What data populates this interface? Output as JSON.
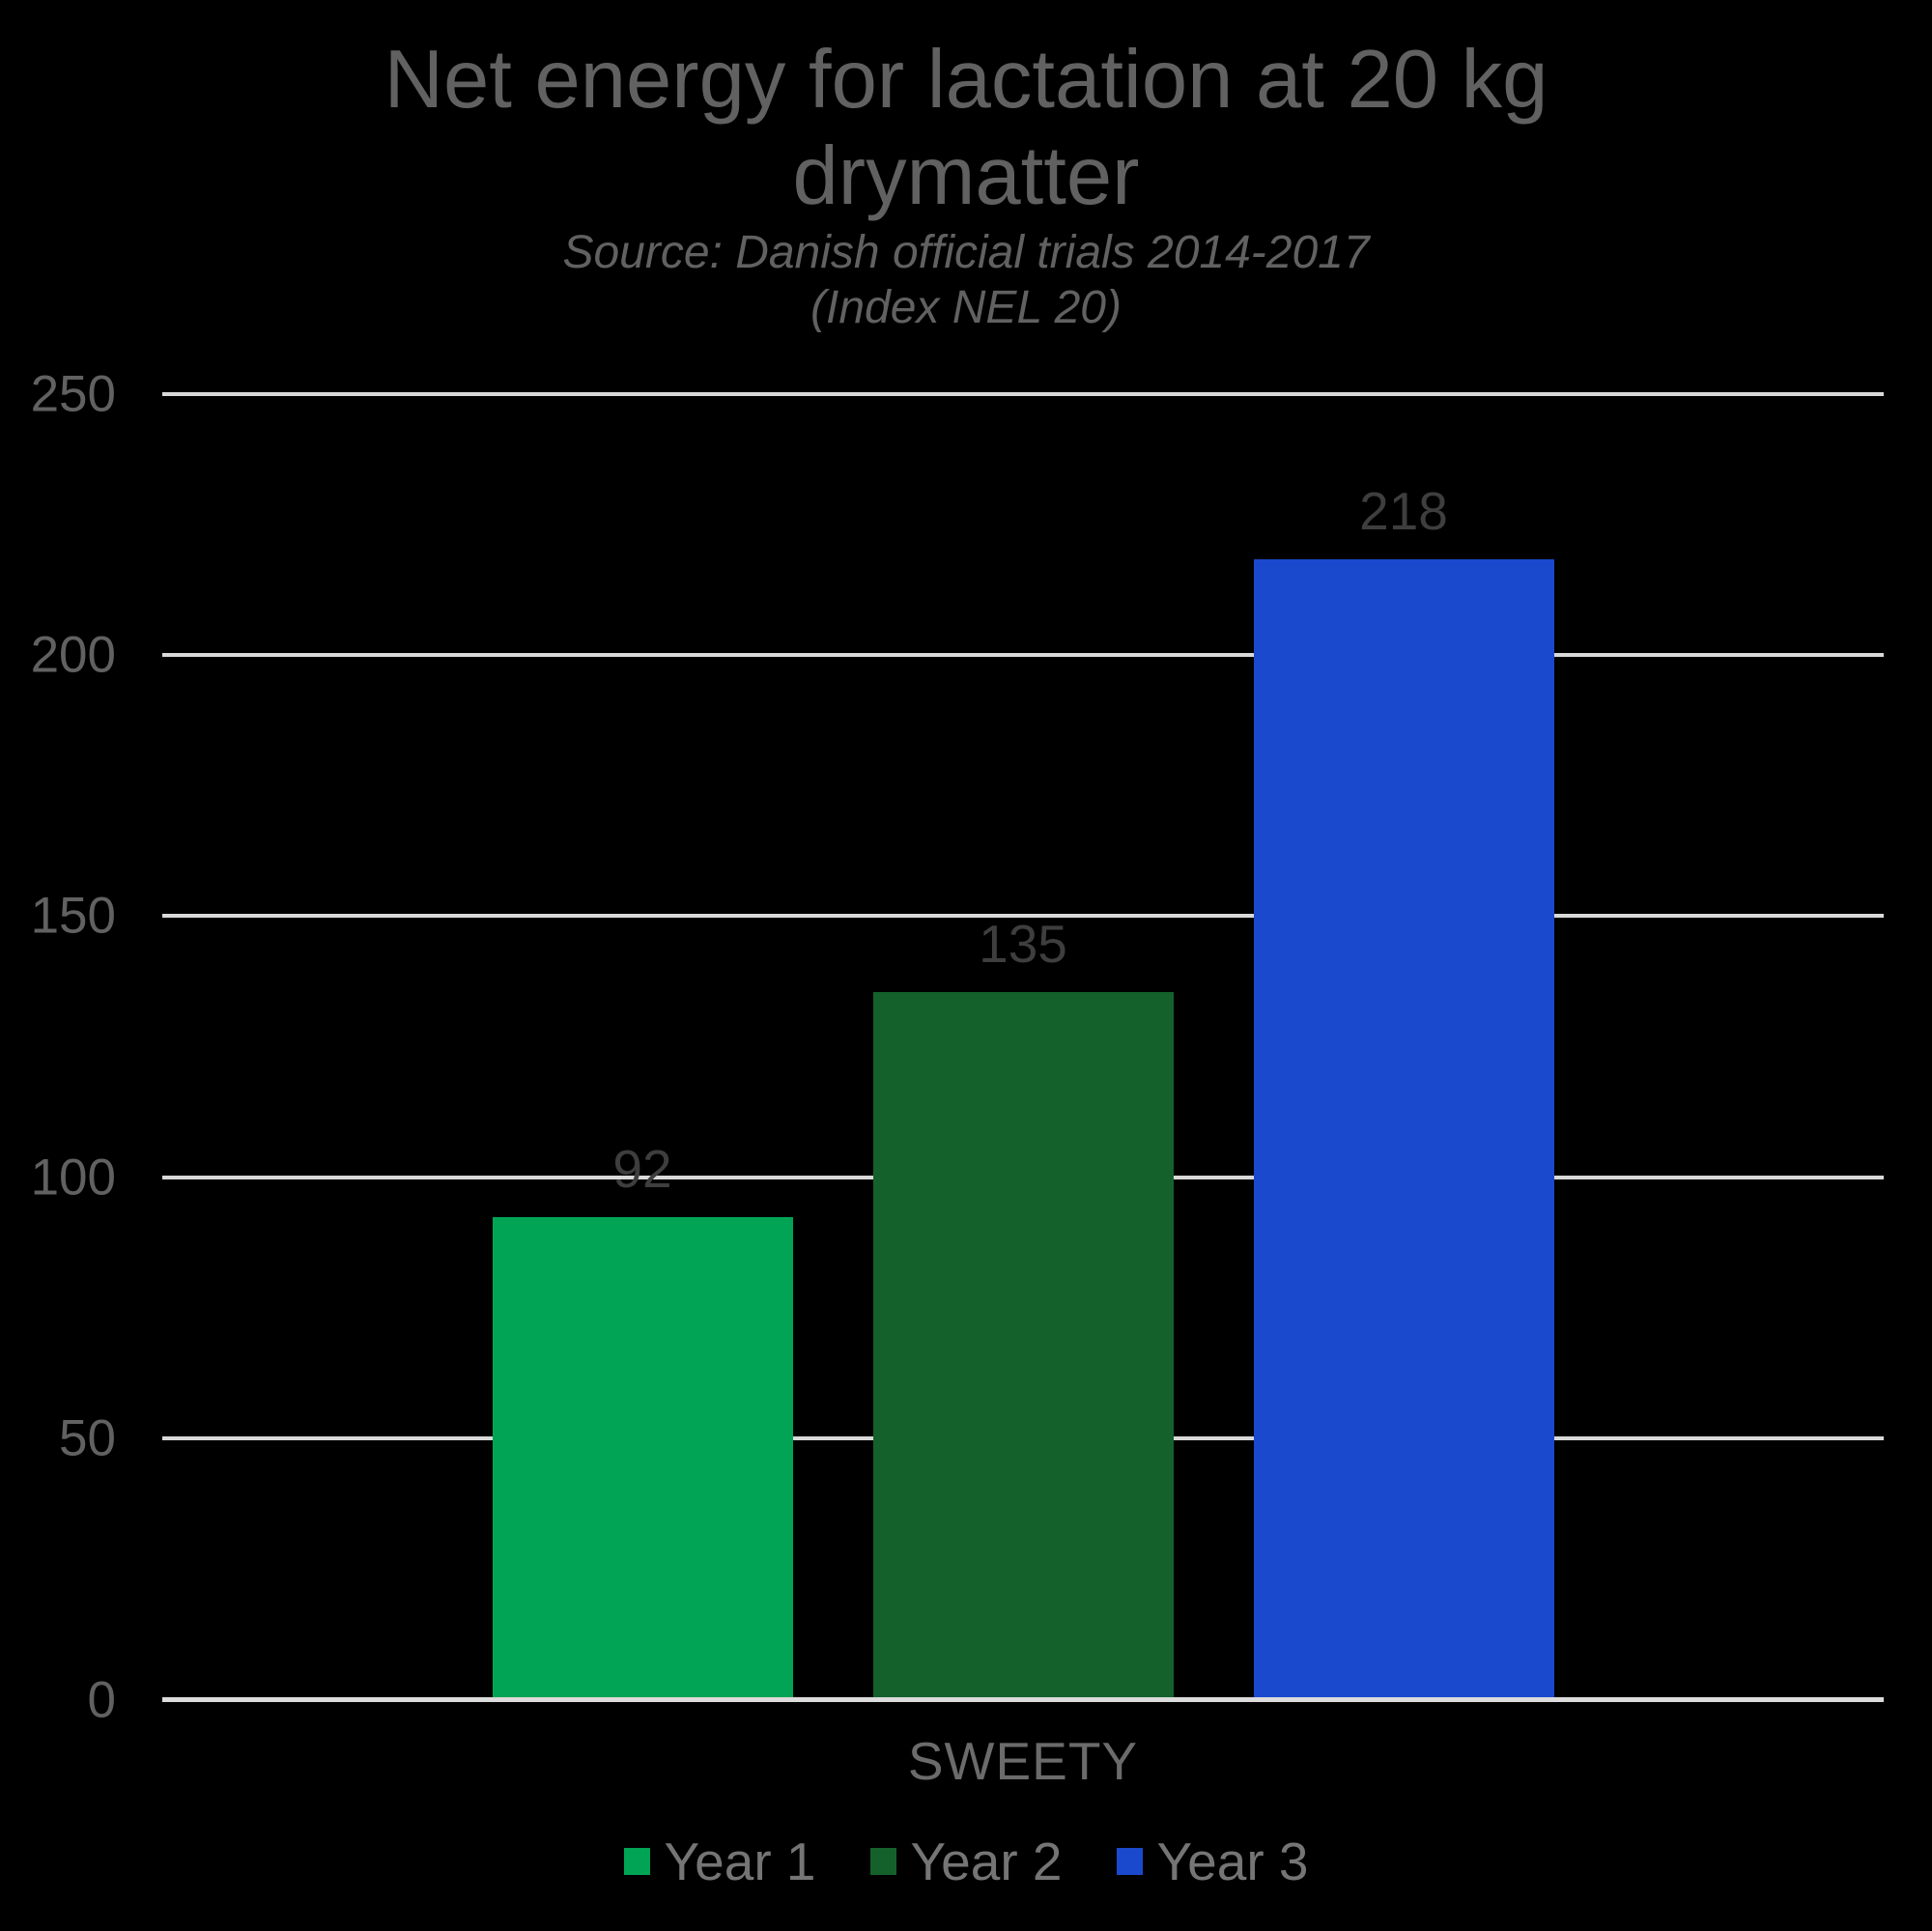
{
  "chart": {
    "title_lines": [
      "Net energy for lactation at 20 kg",
      "drymatter"
    ],
    "subtitle_lines": [
      "Source: Danish official trials 2014-2017",
      "(Index NEL 20)"
    ],
    "category_label": "SWEETY"
  },
  "chart_data": {
    "type": "bar",
    "title": "Net energy for lactation at 20 kg drymatter",
    "subtitle": "Source: Danish official trials 2014-2017 (Index NEL 20)",
    "categories": [
      "SWEETY"
    ],
    "series": [
      {
        "name": "Year 1",
        "values": [
          92
        ],
        "color": "#00A454"
      },
      {
        "name": "Year 2",
        "values": [
          135
        ],
        "color": "#15612C"
      },
      {
        "name": "Year 3",
        "values": [
          218
        ],
        "color": "#1A49CE"
      }
    ],
    "ylim": [
      0,
      250
    ],
    "yticks_desc": [
      250,
      200,
      150,
      100,
      50,
      0
    ],
    "grid": true,
    "legend_position": "bottom",
    "colors": {
      "background": "#000000",
      "gridline": "#D9D9D9",
      "axis_text": "#616161",
      "data_label": "#3E3E3E",
      "legend_text": "#757575"
    }
  }
}
